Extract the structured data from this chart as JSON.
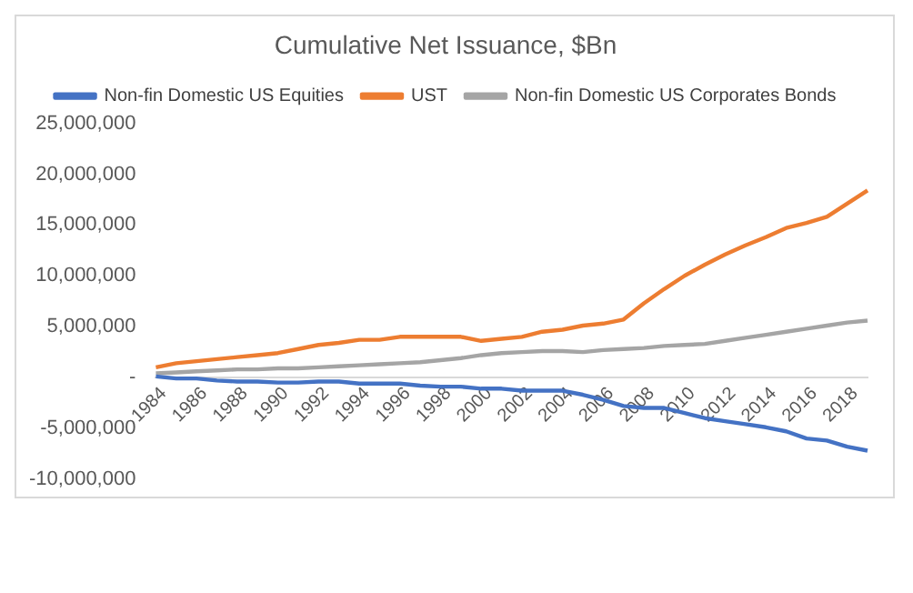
{
  "chart_data": {
    "type": "line",
    "title": "Cumulative Net Issuance, $Bn",
    "categories": [
      "1984",
      null,
      "1986",
      null,
      "1988",
      null,
      "1990",
      null,
      "1992",
      null,
      "1994",
      null,
      "1996",
      null,
      "1998",
      null,
      "2000",
      null,
      "2002",
      null,
      "2004",
      null,
      "2006",
      null,
      "2008",
      null,
      "2010",
      null,
      "2012",
      null,
      "2014",
      null,
      "2016",
      null,
      "2018",
      null
    ],
    "series": [
      {
        "name": "Non-fin Domestic US Equities",
        "color": "#4472c4",
        "values": [
          100000,
          -100000,
          -100000,
          -300000,
          -400000,
          -400000,
          -500000,
          -500000,
          -400000,
          -400000,
          -600000,
          -600000,
          -600000,
          -800000,
          -900000,
          -900000,
          -1100000,
          -1100000,
          -1300000,
          -1300000,
          -1300000,
          -1700000,
          -2200000,
          -2800000,
          -3000000,
          -3000000,
          -3500000,
          -4000000,
          -4300000,
          -4600000,
          -4900000,
          -5300000,
          -6000000,
          -6200000,
          -6800000,
          -7200000
        ]
      },
      {
        "name": "UST",
        "color": "#ed7d31",
        "values": [
          1000000,
          1400000,
          1600000,
          1800000,
          2000000,
          2200000,
          2400000,
          2800000,
          3200000,
          3400000,
          3700000,
          3700000,
          4000000,
          4000000,
          4000000,
          4000000,
          3600000,
          3800000,
          4000000,
          4500000,
          4700000,
          5100000,
          5300000,
          5700000,
          7300000,
          8700000,
          10000000,
          11100000,
          12100000,
          13000000,
          13800000,
          14700000,
          15200000,
          15800000,
          17100000,
          18400000
        ]
      },
      {
        "name": "Non-fin Domestic US Corporates Bonds",
        "color": "#a5a5a5",
        "values": [
          400000,
          500000,
          600000,
          700000,
          800000,
          800000,
          900000,
          900000,
          1000000,
          1100000,
          1200000,
          1300000,
          1400000,
          1500000,
          1700000,
          1900000,
          2200000,
          2400000,
          2500000,
          2600000,
          2600000,
          2500000,
          2700000,
          2800000,
          2900000,
          3100000,
          3200000,
          3300000,
          3600000,
          3900000,
          4200000,
          4500000,
          4800000,
          5100000,
          5400000,
          5600000
        ]
      }
    ],
    "ylim": [
      -10000000,
      25000000
    ],
    "yticks": [
      {
        "value": -10000000,
        "label": "-10,000,000"
      },
      {
        "value": -5000000,
        "label": "-5,000,000"
      },
      {
        "value": 0,
        "label": "-"
      },
      {
        "value": 5000000,
        "label": "5,000,000"
      },
      {
        "value": 10000000,
        "label": "10,000,000"
      },
      {
        "value": 15000000,
        "label": "15,000,000"
      },
      {
        "value": 20000000,
        "label": "20,000,000"
      },
      {
        "value": 25000000,
        "label": "25,000,000"
      }
    ],
    "grid": false,
    "legend": "top",
    "marker": "none",
    "line_style": "solid"
  }
}
